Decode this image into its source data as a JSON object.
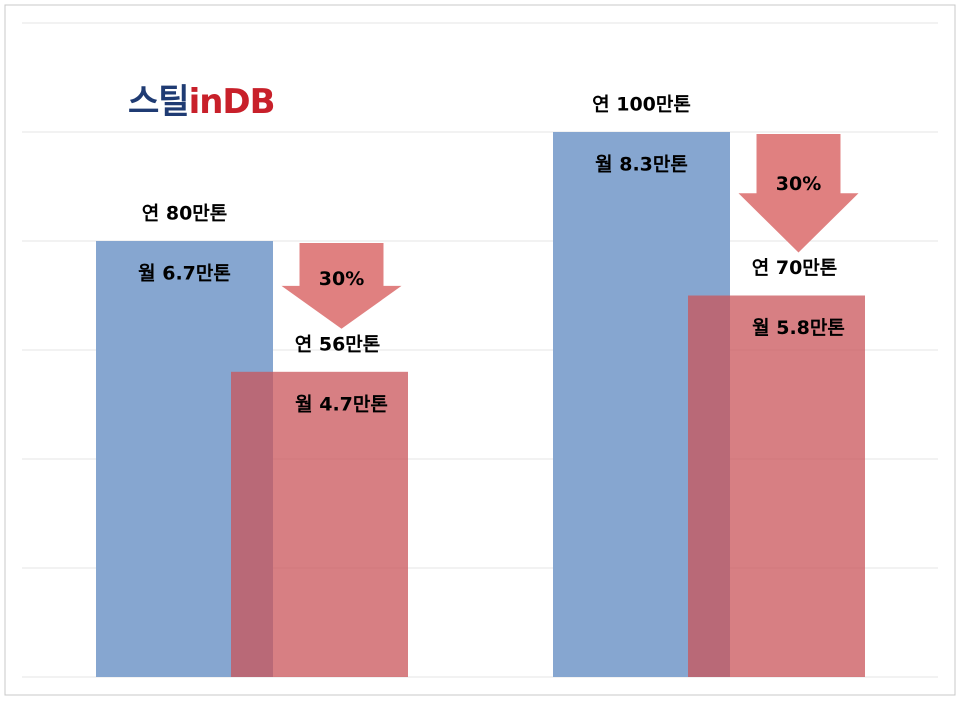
{
  "chart_data": {
    "type": "overlap-bar",
    "logo": [
      "스틸",
      "in",
      "DB"
    ],
    "categories": [
      null,
      null
    ],
    "ylim": [
      0,
      120
    ],
    "yticks": [
      0,
      20,
      40,
      60,
      80,
      100,
      120
    ],
    "grid": true,
    "series": [
      {
        "color": "#86a6d0",
        "values": [
          80,
          100
        ],
        "value_labels": [
          "연 80만톤",
          "연 100만톤"
        ],
        "sub_labels": [
          "월 6.7만톤",
          "월 8.3만톤"
        ]
      },
      {
        "color": "#c9545a",
        "values": [
          56,
          70
        ],
        "value_labels": [
          "연 56만톤",
          "연 70만톤"
        ],
        "sub_labels": [
          "월 4.7만톤",
          "월 5.8만톤"
        ]
      }
    ],
    "annotations": [
      "30%",
      "30%"
    ],
    "annotation_color": "#e08080"
  }
}
